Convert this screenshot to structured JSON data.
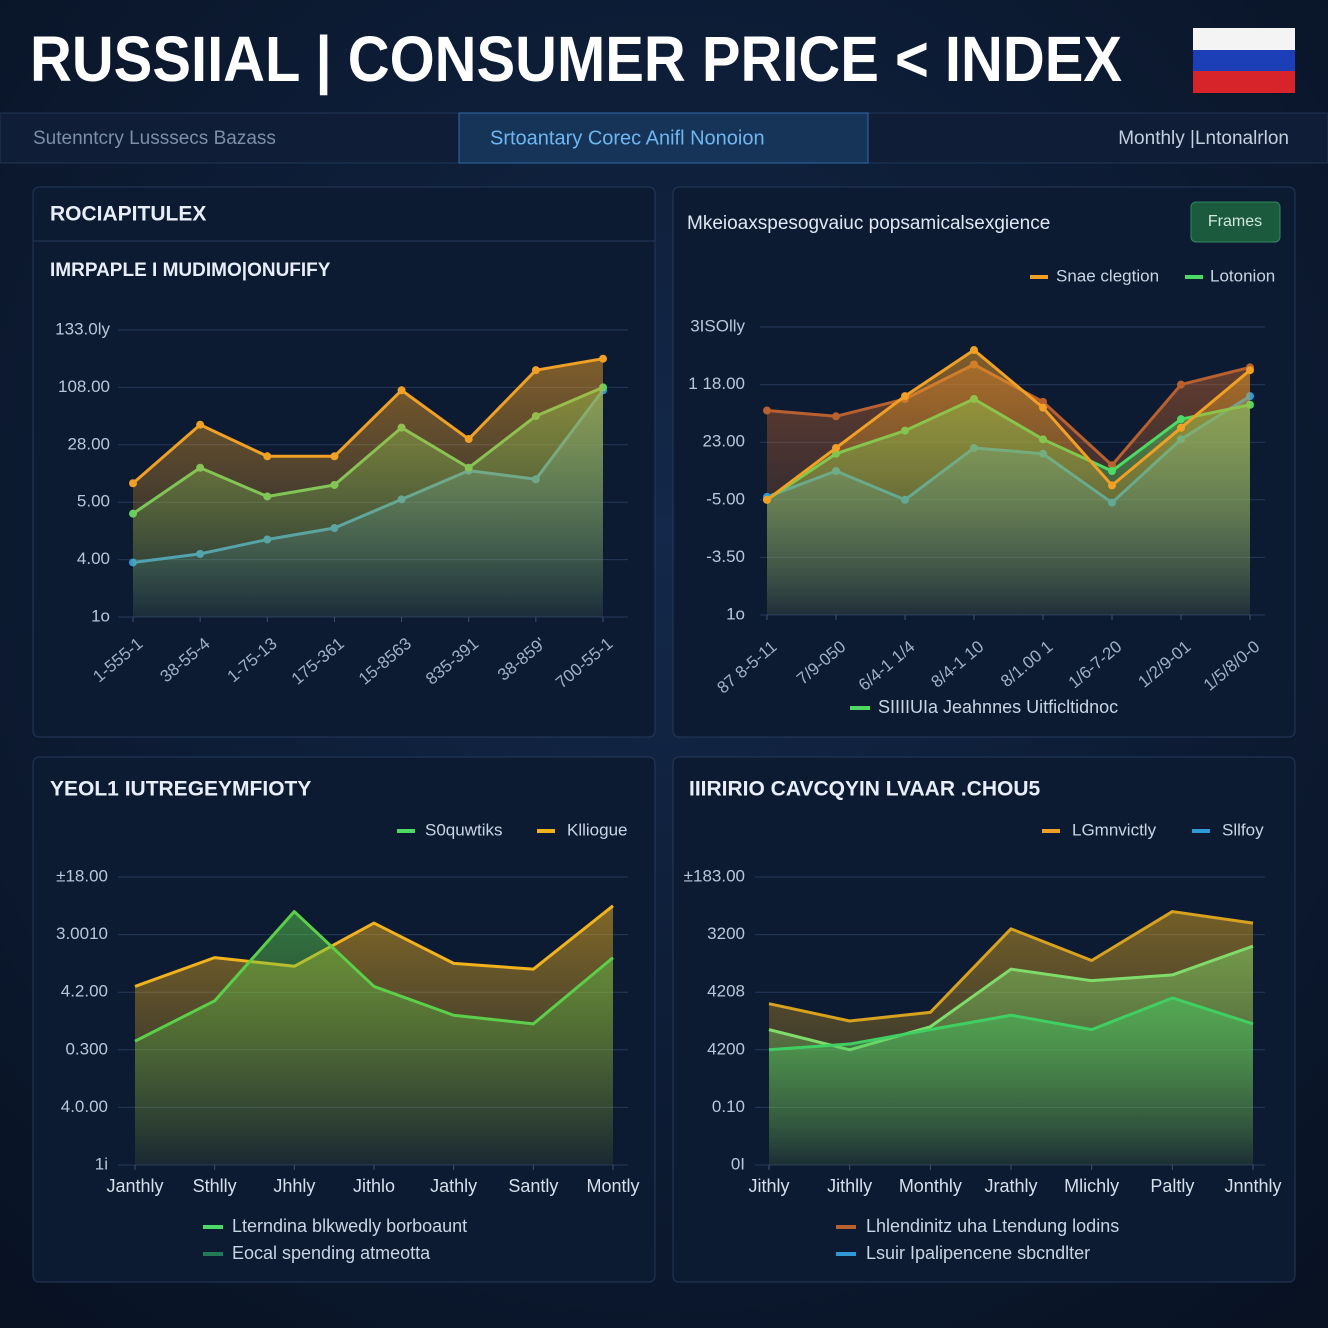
{
  "header": {
    "title": "RUSSIIAL | CONSUMER PRICE < INDEX",
    "tabs": [
      "Sutenntcry  Lusssecs  Bazass",
      "Srtoantary  Corec Anifl Nonoion",
      "Monthly |Lntonalrlon"
    ]
  },
  "chart_data": [
    {
      "type": "area",
      "title": "ROCIAPITULEX",
      "subtitle": "IMRPAPLE I MUDIMO|ONUFIFY",
      "markers": true,
      "grid": true,
      "categories": [
        "1-555-1",
        "38-55-4",
        "1-75-13",
        "175-361",
        "15-8563",
        "835-391",
        "38-859'",
        "700-55-1"
      ],
      "ylim": [
        0,
        5
      ],
      "yticks": [
        {
          "value": 0,
          "label": "1o"
        },
        {
          "value": 1,
          "label": "4.00"
        },
        {
          "value": 2,
          "label": "5.00"
        },
        {
          "value": 3,
          "label": "28.00"
        },
        {
          "value": 4,
          "label": "108.00"
        },
        {
          "value": 5,
          "label": "133.0ly"
        }
      ],
      "series": [
        {
          "color": "#2f9ad6",
          "values": [
            0.95,
            1.1,
            1.35,
            1.55,
            2.05,
            2.55,
            2.4,
            3.95
          ]
        },
        {
          "color": "#58d368",
          "values": [
            1.8,
            2.6,
            2.1,
            2.3,
            3.3,
            2.6,
            3.5,
            4.0
          ]
        },
        {
          "color": "#f0a024",
          "values": [
            2.33,
            3.35,
            2.8,
            2.8,
            3.95,
            3.1,
            4.3,
            4.5
          ]
        }
      ]
    },
    {
      "type": "area",
      "title": "Mkeioaxspesogvaiuc popsamicalsexgience",
      "button": "Frames",
      "markers": true,
      "grid": true,
      "legend": [
        {
          "label": "Snae clegtion",
          "color": "#f0a024"
        },
        {
          "label": "Lotonion",
          "color": "#4cd964"
        }
      ],
      "notes": [
        {
          "label": "SIIIIUIa  Jeahnnes Uitficltidnoc",
          "color": "#4cd964"
        }
      ],
      "categories": [
        "87 8-5-11",
        "7/9-050",
        "6/4-1 1/4",
        "8/4-1 10",
        "8/1.00 1",
        "1/6-7-20",
        "1/2/9-01",
        "1/5/8/0-0"
      ],
      "ylim": [
        0,
        5
      ],
      "yticks": [
        {
          "value": 0,
          "label": "1o"
        },
        {
          "value": 1,
          "label": "-3.50"
        },
        {
          "value": 2,
          "label": "-5.00"
        },
        {
          "value": 3,
          "label": "23.00"
        },
        {
          "value": 4,
          "label": "1 18.00"
        },
        {
          "value": 5,
          "label": "3ISOlly"
        }
      ],
      "series": [
        {
          "color": "#b8602e",
          "values": [
            3.55,
            3.45,
            3.75,
            4.35,
            3.7,
            2.6,
            4.0,
            4.3
          ]
        },
        {
          "color": "#2f9ad6",
          "values": [
            2.05,
            2.5,
            2.0,
            2.9,
            2.8,
            1.95,
            3.05,
            3.8
          ]
        },
        {
          "color": "#4cd964",
          "values": [
            2.0,
            2.8,
            3.2,
            3.75,
            3.05,
            2.5,
            3.4,
            3.65
          ]
        },
        {
          "color": "#f0a024",
          "values": [
            2.0,
            2.9,
            3.8,
            4.6,
            3.6,
            2.25,
            3.25,
            4.25
          ]
        }
      ]
    },
    {
      "type": "area",
      "title": "YEOL1 IUTREGEYMFIOTY",
      "markers": false,
      "grid": true,
      "legend": [
        {
          "label": "S0quwtiks",
          "color": "#4cd964"
        },
        {
          "label": "Klliogue",
          "color": "#f2b21c"
        }
      ],
      "notes": [
        {
          "label": "Lterndina  blkwedly borboaunt",
          "color": "#4cd964"
        },
        {
          "label": "Eocal spending atmeotta",
          "color": "#1f7a55"
        }
      ],
      "categories": [
        "Janthly",
        "Sthlly",
        "Jhhly",
        "Jithlo",
        "Jathly",
        "Santly",
        "Montly"
      ],
      "ylim": [
        0,
        5
      ],
      "yticks": [
        {
          "value": 0,
          "label": "1i"
        },
        {
          "value": 1,
          "label": "4.0.00"
        },
        {
          "value": 2,
          "label": "0.300"
        },
        {
          "value": 3,
          "label": "4.2.00"
        },
        {
          "value": 4,
          "label": "3.0010"
        },
        {
          "value": 5,
          "label": "±18.00"
        }
      ],
      "series": [
        {
          "color": "#f2b21c",
          "values": [
            3.1,
            3.6,
            3.45,
            4.2,
            3.5,
            3.4,
            4.5
          ]
        },
        {
          "color": "#5ccf4a",
          "values": [
            2.15,
            2.85,
            4.4,
            3.1,
            2.6,
            2.45,
            3.6
          ]
        }
      ]
    },
    {
      "type": "area",
      "title": "IIIRIRIO CAVCQYIN LVAAR .CHOU5",
      "markers": false,
      "grid": true,
      "legend": [
        {
          "label": "LGmnvictly",
          "color": "#f0a024"
        },
        {
          "label": "Sllfoy",
          "color": "#2f9ad6"
        }
      ],
      "notes": [
        {
          "label": "Lhlendinitz uha  Ltendung lodins",
          "color": "#b8602e"
        },
        {
          "label": "Lsuir Ipalipencene sbcndlter",
          "color": "#2f9ad6"
        }
      ],
      "categories": [
        "Jithly",
        "Jithlly",
        "Monthly",
        "Jrathly",
        "Mlichly",
        "Paltly",
        "Jnnthly"
      ],
      "ylim": [
        0,
        5
      ],
      "yticks": [
        {
          "value": 0,
          "label": "0I"
        },
        {
          "value": 1,
          "label": "0.10"
        },
        {
          "value": 2,
          "label": "4200"
        },
        {
          "value": 3,
          "label": "4208"
        },
        {
          "value": 4,
          "label": "3200"
        },
        {
          "value": 5,
          "label": "±183.00"
        }
      ],
      "series": [
        {
          "color": "#d9a21e",
          "values": [
            2.8,
            2.5,
            2.65,
            4.1,
            3.55,
            4.4,
            4.2
          ]
        },
        {
          "color": "#7fdc6a",
          "values": [
            2.35,
            2.0,
            2.4,
            3.4,
            3.2,
            3.3,
            3.8
          ]
        },
        {
          "color": "#3fcf62",
          "values": [
            2.0,
            2.1,
            2.35,
            2.6,
            2.35,
            2.9,
            2.45
          ]
        }
      ]
    }
  ]
}
